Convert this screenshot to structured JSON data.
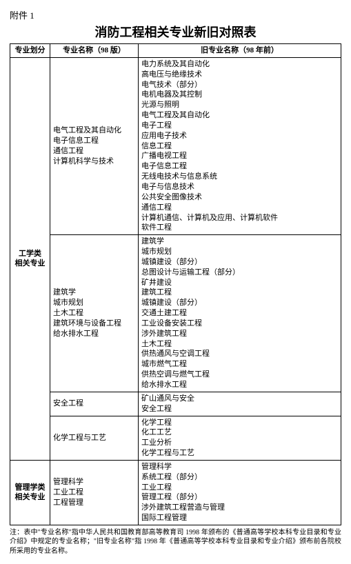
{
  "header": {
    "attachment": "附件 1",
    "title": "消防工程相关专业新旧对照表"
  },
  "columns": {
    "c0": "专业划分",
    "c1": "专业名称（98 版）",
    "c2": "旧专业名称（98 年前）"
  },
  "groups": [
    {
      "category": "工学类\n相关专业",
      "rows": [
        {
          "name98": "电气工程及其自动化\n电子信息工程\n通信工程\n计算机科学与技术",
          "old": "电力系统及其自动化\n高电压与绝缘技术\n电气技术（部分）\n电机电器及其控制\n光源与照明\n电气工程及其自动化\n电子工程\n应用电子技术\n信息工程\n广播电视工程\n电子信息工程\n无线电技术与信息系统\n电子与信息技术\n公共安全图像技术\n通信工程\n计算机通信、计算机及应用、计算机软件\n软件工程"
        },
        {
          "name98": "建筑学\n城市规划\n土木工程\n建筑环境与设备工程\n给水排水工程",
          "old": "建筑学\n城市规划\n城镇建设（部分）\n总图设计与运输工程（部分）\n矿井建设\n建筑工程\n城镇建设（部分）\n交通土建工程\n工业设备安装工程\n涉外建筑工程\n土木工程\n供热通风与空调工程\n城市燃气工程\n供热空调与燃气工程\n给水排水工程"
        },
        {
          "name98": "安全工程",
          "old": "矿山通风与安全\n安全工程"
        },
        {
          "name98": "化学工程与工艺",
          "old": "化学工程\n化工工艺\n工业分析\n化学工程与工艺"
        }
      ]
    },
    {
      "category": "管理学类\n相关专业",
      "rows": [
        {
          "name98": "管理科学\n工业工程\n工程管理",
          "old": "管理科学\n系统工程（部分）\n工业工程\n管理工程（部分）\n涉外建筑工程营造与管理\n国际工程管理"
        }
      ]
    }
  ],
  "note": "注：表中\"专业名称\"指中华人民共和国教育部高等教育司 1998 年颁布的《普通高等学校本科专业目录和专业介绍》中规定的专业名称；\"旧专业名称\"指 1998 年《普通高等学校本科专业目录和专业介绍》颁布前各院校所采用的专业名称。"
}
